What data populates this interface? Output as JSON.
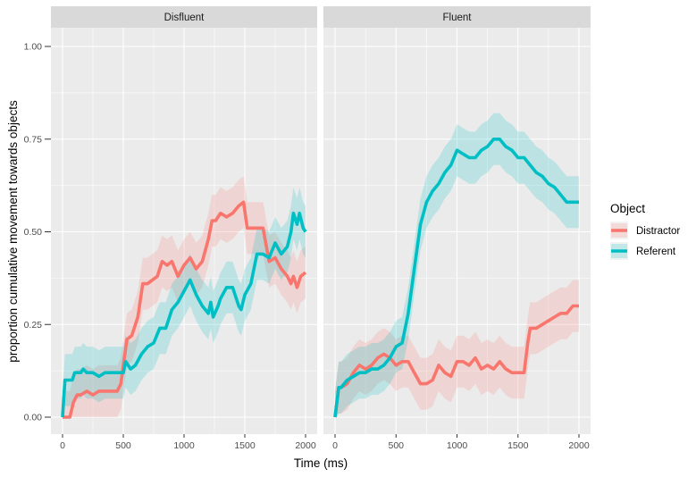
{
  "chart_data": {
    "type": "line",
    "xlabel": "Time (ms)",
    "ylabel": "proportion cumulative movement towards objects",
    "xlim": [
      0,
      2000
    ],
    "ylim": [
      0,
      1
    ],
    "x_ticks": [
      "0",
      "500",
      "1000",
      "1500",
      "2000"
    ],
    "y_ticks": [
      "0.00",
      "0.25",
      "0.50",
      "0.75",
      "1.00"
    ],
    "grid": true,
    "legend": {
      "title": "Object",
      "placement": "right",
      "entries": [
        "Distractor",
        "Referent"
      ]
    },
    "colors": {
      "Distractor": "#F8766D",
      "Referent": "#00BFC4",
      "panel_bg": "#EBEBEB",
      "strip_bg": "#D9D9D9"
    },
    "panels": [
      {
        "name": "Disfluent",
        "series": [
          {
            "name": "Distractor",
            "x": [
              0,
              60,
              90,
              120,
              150,
              200,
              250,
              300,
              350,
              400,
              450,
              480,
              500,
              530,
              570,
              620,
              660,
              700,
              740,
              780,
              820,
              860,
              900,
              950,
              1000,
              1050,
              1100,
              1150,
              1200,
              1230,
              1260,
              1300,
              1350,
              1400,
              1450,
              1490,
              1520,
              1560,
              1600,
              1650,
              1700,
              1750,
              1800,
              1850,
              1880,
              1900,
              1930,
              1960,
              2000
            ],
            "y": [
              0,
              0,
              0.04,
              0.06,
              0.06,
              0.07,
              0.06,
              0.07,
              0.07,
              0.07,
              0.07,
              0.09,
              0.14,
              0.21,
              0.22,
              0.27,
              0.36,
              0.36,
              0.37,
              0.38,
              0.42,
              0.41,
              0.42,
              0.38,
              0.41,
              0.43,
              0.4,
              0.42,
              0.48,
              0.53,
              0.53,
              0.55,
              0.54,
              0.55,
              0.57,
              0.58,
              0.51,
              0.51,
              0.51,
              0.51,
              0.42,
              0.43,
              0.4,
              0.38,
              0.36,
              0.38,
              0.35,
              0.38,
              0.39
            ]
          },
          {
            "name": "Referent",
            "x": [
              0,
              20,
              40,
              80,
              100,
              150,
              170,
              200,
              250,
              300,
              350,
              400,
              450,
              500,
              520,
              560,
              600,
              650,
              700,
              750,
              800,
              850,
              900,
              950,
              1000,
              1050,
              1100,
              1150,
              1200,
              1220,
              1240,
              1280,
              1300,
              1350,
              1400,
              1450,
              1470,
              1500,
              1550,
              1600,
              1650,
              1700,
              1750,
              1800,
              1850,
              1880,
              1900,
              1930,
              1950,
              1980,
              2000
            ],
            "y": [
              0,
              0.1,
              0.1,
              0.1,
              0.12,
              0.12,
              0.13,
              0.12,
              0.12,
              0.11,
              0.12,
              0.12,
              0.12,
              0.12,
              0.15,
              0.13,
              0.14,
              0.17,
              0.19,
              0.2,
              0.24,
              0.24,
              0.29,
              0.31,
              0.34,
              0.37,
              0.33,
              0.3,
              0.28,
              0.31,
              0.27,
              0.3,
              0.32,
              0.35,
              0.35,
              0.3,
              0.29,
              0.33,
              0.36,
              0.44,
              0.44,
              0.43,
              0.47,
              0.44,
              0.46,
              0.5,
              0.55,
              0.52,
              0.55,
              0.51,
              0.5
            ]
          }
        ]
      },
      {
        "name": "Fluent",
        "series": [
          {
            "name": "Distractor",
            "x": [
              0,
              30,
              50,
              100,
              150,
              200,
              250,
              300,
              350,
              400,
              450,
              500,
              550,
              600,
              650,
              700,
              750,
              800,
              850,
              900,
              950,
              1000,
              1050,
              1100,
              1150,
              1200,
              1250,
              1300,
              1350,
              1400,
              1450,
              1500,
              1550,
              1580,
              1600,
              1650,
              1700,
              1750,
              1800,
              1850,
              1900,
              1950,
              2000
            ],
            "y": [
              0,
              0.08,
              0.08,
              0.09,
              0.12,
              0.14,
              0.13,
              0.14,
              0.16,
              0.17,
              0.16,
              0.14,
              0.15,
              0.15,
              0.12,
              0.09,
              0.09,
              0.1,
              0.14,
              0.12,
              0.11,
              0.15,
              0.15,
              0.14,
              0.16,
              0.13,
              0.14,
              0.13,
              0.15,
              0.13,
              0.12,
              0.12,
              0.12,
              0.2,
              0.24,
              0.24,
              0.25,
              0.26,
              0.27,
              0.28,
              0.28,
              0.3,
              0.3
            ]
          },
          {
            "name": "Referent",
            "x": [
              0,
              30,
              50,
              100,
              150,
              200,
              250,
              300,
              350,
              400,
              450,
              500,
              550,
              600,
              650,
              700,
              750,
              800,
              850,
              900,
              950,
              1000,
              1050,
              1100,
              1150,
              1200,
              1250,
              1300,
              1350,
              1400,
              1450,
              1500,
              1550,
              1600,
              1650,
              1700,
              1750,
              1800,
              1850,
              1900,
              1950,
              2000
            ],
            "y": [
              0,
              0.08,
              0.08,
              0.1,
              0.11,
              0.12,
              0.12,
              0.13,
              0.13,
              0.14,
              0.16,
              0.19,
              0.2,
              0.28,
              0.4,
              0.52,
              0.58,
              0.61,
              0.63,
              0.66,
              0.68,
              0.72,
              0.71,
              0.7,
              0.7,
              0.72,
              0.73,
              0.75,
              0.75,
              0.73,
              0.72,
              0.7,
              0.7,
              0.68,
              0.66,
              0.65,
              0.63,
              0.62,
              0.6,
              0.58,
              0.58,
              0.58
            ]
          }
        ]
      }
    ]
  }
}
